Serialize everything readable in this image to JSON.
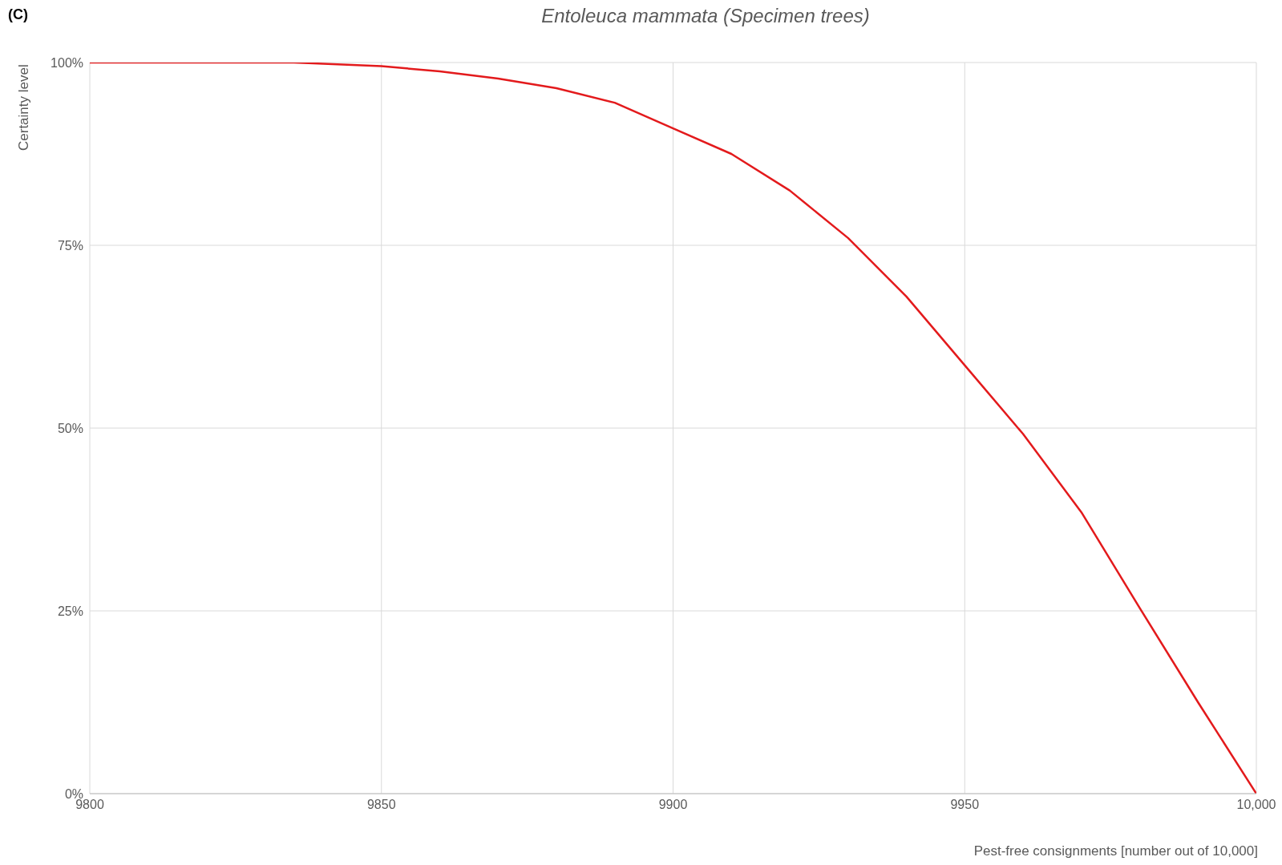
{
  "chart_data": {
    "type": "line",
    "title": "Entoleuca mammata (Specimen trees)",
    "annotations": [
      "(C)"
    ],
    "xlabel": "Pest-free consignments [number out of 10,000]",
    "ylabel": "Certainty level",
    "x": [
      9800,
      9820,
      9835,
      9850,
      9860,
      9870,
      9880,
      9890,
      9900,
      9910,
      9920,
      9930,
      9940,
      9950,
      9960,
      9970,
      9980,
      9990,
      10000
    ],
    "series": [
      {
        "color": "#e31a1c",
        "values": [
          100,
          100,
          100,
          99.5,
          98.8,
          97.8,
          96.5,
          94.5,
          91,
          87.5,
          82.5,
          76,
          68,
          58.6,
          49.2,
          38.5,
          25.4,
          12.5,
          0
        ]
      }
    ],
    "xlim": [
      9800,
      10000
    ],
    "xticks": [
      9800,
      9850,
      9900,
      9950,
      {
        "value": 10000,
        "label": "10,000"
      }
    ],
    "ylim": [
      0,
      100
    ],
    "yticks": [
      {
        "value": 0,
        "label": "0%"
      },
      {
        "value": 25,
        "label": "25%"
      },
      {
        "value": 50,
        "label": "50%"
      },
      {
        "value": 75,
        "label": "75%"
      },
      {
        "value": 100,
        "label": "100%"
      }
    ],
    "grid": true,
    "marker": "none",
    "line_style": "solid"
  }
}
